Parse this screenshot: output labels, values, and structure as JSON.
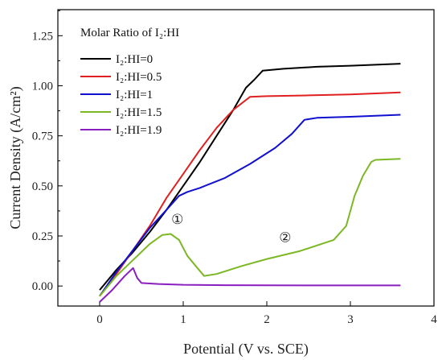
{
  "chart_data": {
    "type": "line",
    "xlabel": "Potential (V vs. SCE)",
    "ylabel": "Current Density (A/cm²)",
    "xlim": [
      -0.5,
      4.0
    ],
    "ylim": [
      -0.1,
      1.38
    ],
    "x_ticks": [
      0,
      1,
      2,
      3,
      4
    ],
    "y_ticks": [
      0.0,
      0.25,
      0.5,
      0.75,
      1.0,
      1.25
    ],
    "x_tick_labels": [
      "0",
      "1",
      "2",
      "3",
      "4"
    ],
    "y_tick_labels": [
      "0.00",
      "0.25",
      "0.50",
      "0.75",
      "1.00",
      "1.25"
    ],
    "legend": {
      "title": "Molar Ratio of I₂:HI",
      "placement": "top-left"
    },
    "series": [
      {
        "name": "I₂:HI=0",
        "color": "#000000",
        "points": [
          [
            0.0,
            -0.02
          ],
          [
            0.2,
            0.08
          ],
          [
            0.4,
            0.17
          ],
          [
            0.6,
            0.27
          ],
          [
            0.8,
            0.38
          ],
          [
            1.0,
            0.5
          ],
          [
            1.2,
            0.62
          ],
          [
            1.4,
            0.75
          ],
          [
            1.6,
            0.88
          ],
          [
            1.75,
            0.99
          ],
          [
            1.85,
            1.03
          ],
          [
            1.95,
            1.075
          ],
          [
            2.2,
            1.085
          ],
          [
            2.6,
            1.095
          ],
          [
            3.0,
            1.1
          ],
          [
            3.3,
            1.105
          ],
          [
            3.6,
            1.11
          ]
        ]
      },
      {
        "name": "I₂:HI=0.5",
        "color": "#e02020",
        "points": [
          [
            0.0,
            -0.05
          ],
          [
            0.2,
            0.06
          ],
          [
            0.4,
            0.18
          ],
          [
            0.6,
            0.3
          ],
          [
            0.8,
            0.44
          ],
          [
            1.0,
            0.56
          ],
          [
            1.2,
            0.68
          ],
          [
            1.4,
            0.79
          ],
          [
            1.6,
            0.88
          ],
          [
            1.8,
            0.945
          ],
          [
            2.0,
            0.948
          ],
          [
            2.5,
            0.952
          ],
          [
            3.0,
            0.957
          ],
          [
            3.6,
            0.967
          ]
        ]
      },
      {
        "name": "I₂:HI=1",
        "color": "#1010d0",
        "points": [
          [
            0.0,
            -0.05
          ],
          [
            0.2,
            0.07
          ],
          [
            0.4,
            0.18
          ],
          [
            0.6,
            0.29
          ],
          [
            0.8,
            0.38
          ],
          [
            0.95,
            0.45
          ],
          [
            1.05,
            0.47
          ],
          [
            1.2,
            0.49
          ],
          [
            1.5,
            0.54
          ],
          [
            1.8,
            0.61
          ],
          [
            2.1,
            0.69
          ],
          [
            2.3,
            0.76
          ],
          [
            2.45,
            0.83
          ],
          [
            2.6,
            0.84
          ],
          [
            3.0,
            0.845
          ],
          [
            3.6,
            0.855
          ]
        ]
      },
      {
        "name": "I₂:HI=1.5",
        "color": "#7cb824",
        "points": [
          [
            0.0,
            -0.05
          ],
          [
            0.2,
            0.05
          ],
          [
            0.4,
            0.13
          ],
          [
            0.6,
            0.21
          ],
          [
            0.75,
            0.255
          ],
          [
            0.85,
            0.26
          ],
          [
            0.95,
            0.23
          ],
          [
            1.05,
            0.15
          ],
          [
            1.15,
            0.1
          ],
          [
            1.25,
            0.05
          ],
          [
            1.4,
            0.06
          ],
          [
            1.7,
            0.1
          ],
          [
            2.0,
            0.135
          ],
          [
            2.4,
            0.175
          ],
          [
            2.8,
            0.23
          ],
          [
            2.95,
            0.3
          ],
          [
            3.05,
            0.45
          ],
          [
            3.15,
            0.55
          ],
          [
            3.25,
            0.62
          ],
          [
            3.3,
            0.63
          ],
          [
            3.6,
            0.635
          ]
        ]
      },
      {
        "name": "I₂:HI=1.9",
        "color": "#8a1fbf",
        "points": [
          [
            0.0,
            -0.08
          ],
          [
            0.15,
            -0.02
          ],
          [
            0.3,
            0.05
          ],
          [
            0.4,
            0.09
          ],
          [
            0.45,
            0.04
          ],
          [
            0.5,
            0.015
          ],
          [
            0.7,
            0.01
          ],
          [
            1.0,
            0.006
          ],
          [
            1.5,
            0.004
          ],
          [
            2.5,
            0.003
          ],
          [
            3.6,
            0.003
          ]
        ]
      }
    ],
    "annotations": [
      {
        "text": "①",
        "x": 0.93,
        "y": 0.31
      },
      {
        "text": "②",
        "x": 2.22,
        "y": 0.22
      }
    ]
  }
}
